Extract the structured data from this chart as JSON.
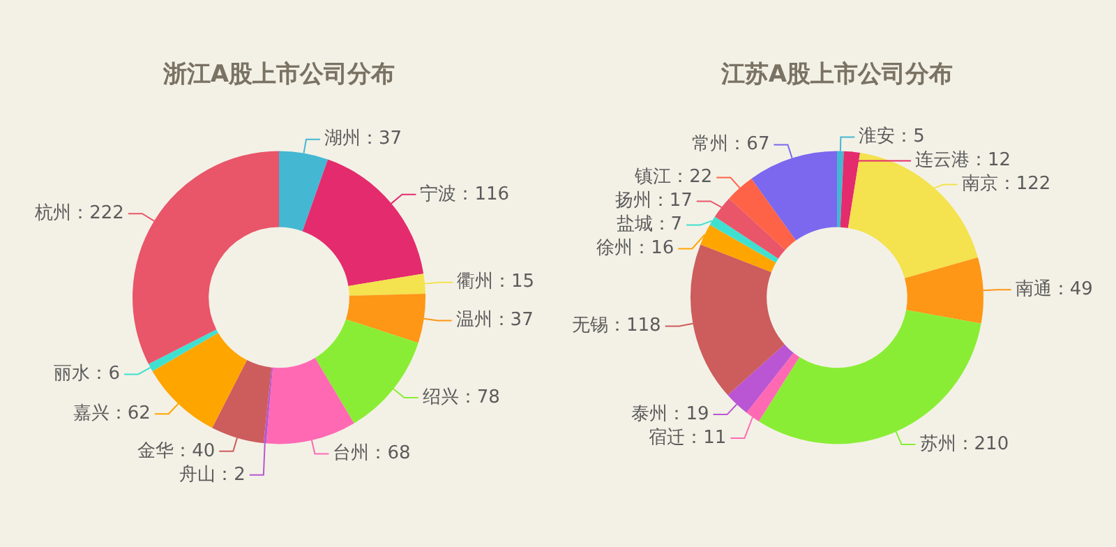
{
  "chart_data": [
    {
      "type": "donut",
      "title": "浙江A股上市公司分布",
      "categories": [
        "湖州",
        "宁波",
        "衢州",
        "温州",
        "绍兴",
        "台州",
        "舟山",
        "金华",
        "嘉兴",
        "丽水",
        "杭州"
      ],
      "values": [
        37,
        116,
        15,
        37,
        78,
        68,
        2,
        40,
        62,
        6,
        222
      ],
      "value_labels": [
        "：37",
        "：116",
        "：15",
        "：37",
        "：78",
        "：68",
        "：2",
        "：40",
        "：62",
        "：6",
        "：222"
      ],
      "colors": [
        "#44b7d3",
        "#e42b6d",
        "#f4e24e",
        "#fe9616",
        "#8aed35",
        "#ff69b4",
        "#ba55d3",
        "#cd5c5c",
        "#ffa500",
        "#40e0d0",
        "#e95569"
      ]
    },
    {
      "type": "donut",
      "title": "江苏A股上市公司分布",
      "categories": [
        "淮安",
        "连云港",
        "南京",
        "南通",
        "苏州",
        "宿迁",
        "泰州",
        "无锡",
        "徐州",
        "盐城",
        "扬州",
        "镇江",
        "常州"
      ],
      "values": [
        5,
        12,
        122,
        49,
        210,
        11,
        19,
        118,
        16,
        7,
        17,
        22,
        67
      ],
      "value_labels": [
        "：5",
        "：12",
        "：122",
        "：49",
        "：210",
        "：11",
        "：19",
        "：118",
        "：16",
        "：7",
        "：17",
        "：22",
        "：67"
      ],
      "colors": [
        "#44b7d3",
        "#e42b6d",
        "#f4e24e",
        "#fe9616",
        "#8aed35",
        "#ff69b4",
        "#ba55d3",
        "#cd5c5c",
        "#ffa500",
        "#40e0d0",
        "#e95569",
        "#ff6347",
        "#7b68ee"
      ]
    }
  ]
}
